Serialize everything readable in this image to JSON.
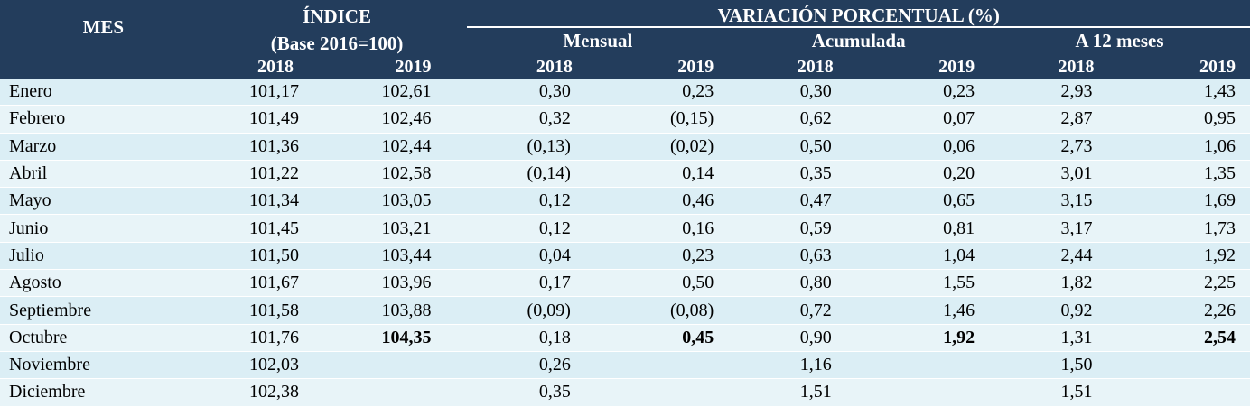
{
  "header": {
    "mes_label": "MES",
    "indice_title": "ÍNDICE",
    "indice_subtitle": "(Base 2016=100)",
    "variacion_title": "VARIACIÓN PORCENTUAL (%)",
    "mensual_label": "Mensual",
    "acumulada_label": "Acumulada",
    "doce_meses_label": "A 12 meses",
    "years": [
      "2018",
      "2019",
      "2018",
      "2019",
      "2018",
      "2019",
      "2018",
      "2019"
    ]
  },
  "rows": [
    {
      "mes": "Enero",
      "v": [
        "101,17",
        "102,61",
        "0,30",
        "0,23",
        "0,30",
        "0,23",
        "2,93",
        "1,43"
      ]
    },
    {
      "mes": "Febrero",
      "v": [
        "101,49",
        "102,46",
        "0,32",
        "(0,15)",
        "0,62",
        "0,07",
        "2,87",
        "0,95"
      ]
    },
    {
      "mes": "Marzo",
      "v": [
        "101,36",
        "102,44",
        "(0,13)",
        "(0,02)",
        "0,50",
        "0,06",
        "2,73",
        "1,06"
      ]
    },
    {
      "mes": "Abril",
      "v": [
        "101,22",
        "102,58",
        "(0,14)",
        "0,14",
        "0,35",
        "0,20",
        "3,01",
        "1,35"
      ]
    },
    {
      "mes": "Mayo",
      "v": [
        "101,34",
        "103,05",
        "0,12",
        "0,46",
        "0,47",
        "0,65",
        "3,15",
        "1,69"
      ]
    },
    {
      "mes": "Junio",
      "v": [
        "101,45",
        "103,21",
        "0,12",
        "0,16",
        "0,59",
        "0,81",
        "3,17",
        "1,73"
      ]
    },
    {
      "mes": "Julio",
      "v": [
        "101,50",
        "103,44",
        "0,04",
        "0,23",
        "0,63",
        "1,04",
        "2,44",
        "1,92"
      ]
    },
    {
      "mes": "Agosto",
      "v": [
        "101,67",
        "103,96",
        "0,17",
        "0,50",
        "0,80",
        "1,55",
        "1,82",
        "2,25"
      ]
    },
    {
      "mes": "Septiembre",
      "v": [
        "101,58",
        "103,88",
        "(0,09)",
        "(0,08)",
        "0,72",
        "1,46",
        "0,92",
        "2,26"
      ]
    },
    {
      "mes": "Octubre",
      "v": [
        "101,76",
        "104,35",
        "0,18",
        "0,45",
        "0,90",
        "1,92",
        "1,31",
        "2,54"
      ]
    },
    {
      "mes": "Noviembre",
      "v": [
        "102,03",
        "",
        "0,26",
        "",
        "1,16",
        "",
        "1,50",
        ""
      ]
    },
    {
      "mes": "Diciembre",
      "v": [
        "102,38",
        "",
        "0,35",
        "",
        "1,51",
        "",
        "1,51",
        ""
      ]
    }
  ],
  "colors": {
    "header_bg": "#233d5c",
    "row_bg": "#dbeef5",
    "row_alt_bg": "#e8f4f8"
  }
}
